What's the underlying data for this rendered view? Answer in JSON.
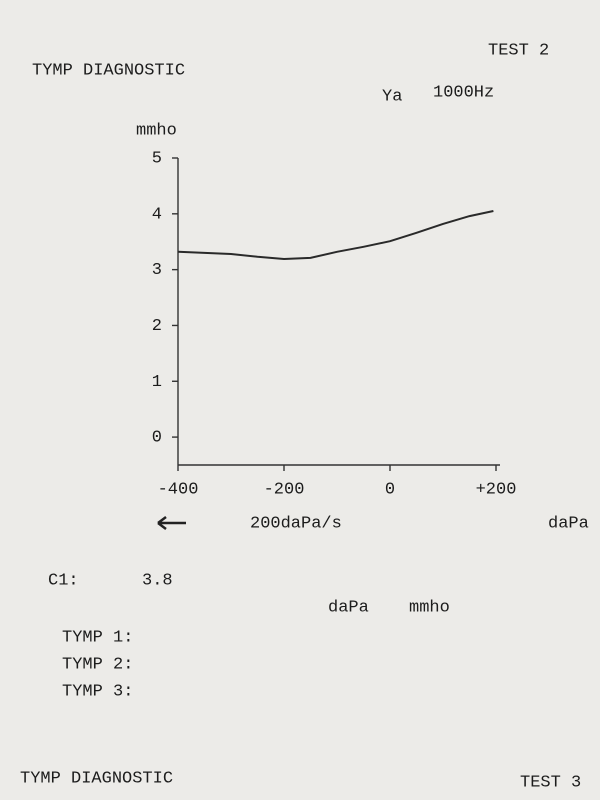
{
  "chart_data": {
    "type": "line",
    "y_label": "mmho",
    "x_label": "daPa",
    "rate": "200daPa/s",
    "x": [
      -400,
      -350,
      -300,
      -250,
      -200,
      -150,
      -100,
      -50,
      0,
      50,
      100,
      150,
      195
    ],
    "series": [
      {
        "color": "#2a2a2a",
        "values": [
          3.32,
          3.3,
          3.28,
          3.23,
          3.19,
          3.21,
          3.32,
          3.41,
          3.51,
          3.66,
          3.82,
          3.96,
          4.05
        ]
      }
    ],
    "xlim": [
      -400,
      200
    ],
    "xticks": [
      -400,
      -200,
      0,
      {
        "value": 200,
        "label": "+200"
      }
    ],
    "ylim": [
      -0.5,
      5
    ],
    "yticks": [
      0,
      1,
      2,
      3,
      4,
      5
    ],
    "grid": false
  },
  "document": {
    "test_top": "TEST 2",
    "title_top": "TYMP DIAGNOSTIC",
    "probe": "Ya",
    "frequency": "1000Hz",
    "c1_label": "C1:",
    "c1_value": "3.8",
    "col_daPa": "daPa",
    "col_mmho": "mmho",
    "tymps": [
      "TYMP 1:",
      "TYMP 2:",
      "TYMP 3:"
    ],
    "title_bottom": "TYMP DIAGNOSTIC",
    "test_bottom": "TEST 3"
  }
}
